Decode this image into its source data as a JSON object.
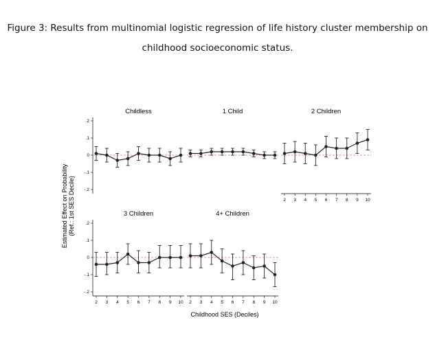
{
  "figure": {
    "caption_line1": "Figure 3: Results from multinomial logistic regression of life history cluster membership on",
    "caption_line2": "childhood socioeconomic status."
  },
  "chart_data": {
    "type": "scatter",
    "xlabel": "Childhood SES (Deciles)",
    "ylabel_line1": "Estimated Effect on Probability",
    "ylabel_line2": "(Ref.: 1st SES Decile)",
    "x": [
      2,
      3,
      4,
      5,
      6,
      7,
      8,
      9,
      10
    ],
    "x_tick_labels": [
      "2",
      "3",
      "4",
      "5",
      "6",
      "7",
      "8",
      "9",
      "10"
    ],
    "ylim": [
      -0.2,
      0.2
    ],
    "y_tick_labels": [
      "-.2",
      "-.1",
      "0",
      ".1",
      ".2"
    ],
    "y_ticks": [
      -0.2,
      -0.1,
      0,
      0.1,
      0.2
    ],
    "reference_line": 0,
    "panels": [
      {
        "title": "Childless",
        "estimates": [
          0.01,
          0.0,
          -0.03,
          -0.02,
          0.01,
          0.0,
          0.0,
          -0.02,
          0.0
        ],
        "ci_low": [
          -0.03,
          -0.04,
          -0.07,
          -0.06,
          -0.03,
          -0.04,
          -0.04,
          -0.06,
          -0.04
        ],
        "ci_high": [
          0.05,
          0.04,
          0.01,
          0.02,
          0.05,
          0.04,
          0.04,
          0.02,
          0.04
        ]
      },
      {
        "title": "1 Child",
        "estimates": [
          0.01,
          0.01,
          0.02,
          0.02,
          0.02,
          0.02,
          0.01,
          0.0,
          0.0
        ],
        "ci_low": [
          -0.01,
          -0.01,
          0.0,
          0.0,
          0.0,
          0.0,
          -0.01,
          -0.02,
          -0.02
        ],
        "ci_high": [
          0.03,
          0.03,
          0.04,
          0.04,
          0.04,
          0.04,
          0.03,
          0.02,
          0.02
        ]
      },
      {
        "title": "2 Children",
        "estimates": [
          0.01,
          0.02,
          0.01,
          0.0,
          0.05,
          0.04,
          0.04,
          0.07,
          0.09
        ],
        "ci_low": [
          -0.05,
          -0.04,
          -0.05,
          -0.06,
          -0.01,
          -0.02,
          -0.02,
          0.01,
          0.03
        ],
        "ci_high": [
          0.07,
          0.08,
          0.07,
          0.06,
          0.11,
          0.1,
          0.1,
          0.13,
          0.15
        ]
      },
      {
        "title": "3 Children",
        "estimates": [
          -0.04,
          -0.04,
          -0.03,
          0.02,
          -0.03,
          -0.03,
          0.0,
          0.0,
          0.0
        ],
        "ci_low": [
          -0.11,
          -0.1,
          -0.09,
          -0.04,
          -0.09,
          -0.09,
          -0.06,
          -0.06,
          -0.06
        ],
        "ci_high": [
          0.03,
          0.03,
          0.03,
          0.08,
          0.04,
          0.03,
          0.07,
          0.07,
          0.07
        ]
      },
      {
        "title": "4+ Children",
        "estimates": [
          0.01,
          0.01,
          0.03,
          -0.02,
          -0.05,
          -0.03,
          -0.06,
          -0.05,
          -0.1
        ],
        "ci_low": [
          -0.06,
          -0.06,
          -0.04,
          -0.09,
          -0.13,
          -0.1,
          -0.13,
          -0.12,
          -0.17
        ],
        "ci_high": [
          0.08,
          0.08,
          0.1,
          0.05,
          0.02,
          0.04,
          0.01,
          0.02,
          -0.03
        ]
      }
    ],
    "grid": false,
    "legend": "none",
    "colors": {
      "series": "#222222",
      "reference_line": "#cc3333"
    }
  }
}
